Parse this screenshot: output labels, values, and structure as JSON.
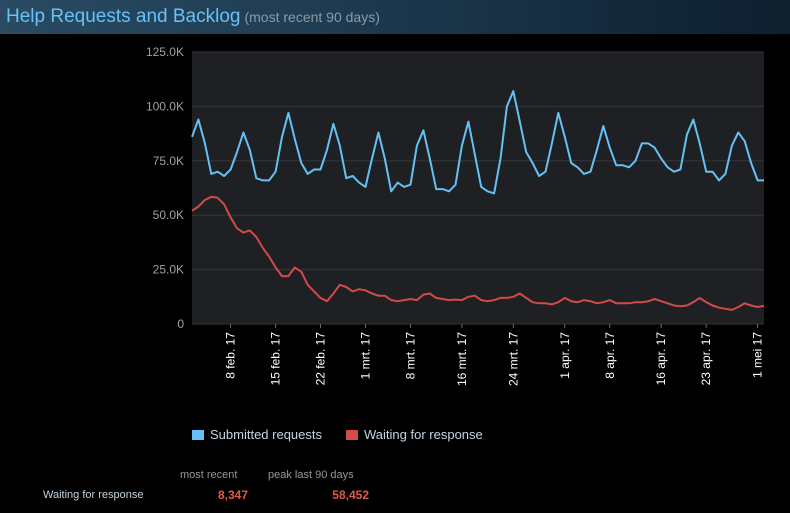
{
  "header": {
    "title": "Help Requests and Backlog",
    "subtitle": "(most recent 90 days)"
  },
  "colors": {
    "submitted": "#66c0f4",
    "waiting": "#d24a4a",
    "plot_bg": "#1e2023",
    "grid": "#33363a"
  },
  "chart_data": {
    "type": "line",
    "title": "Help Requests and Backlog",
    "subtitle": "(most recent 90 days)",
    "ylim": [
      0,
      125000
    ],
    "y_ticks": [
      0,
      25000,
      50000,
      75000,
      100000,
      125000
    ],
    "y_tick_labels": [
      "0",
      "25.0K",
      "50.0K",
      "75.0K",
      "100.0K",
      "125.0K"
    ],
    "x_start": "2017-02-02",
    "x_tick_labels": [
      "8 feb. 17",
      "15 feb. 17",
      "22 feb. 17",
      "1 mrt. 17",
      "8 mrt. 17",
      "16 mrt. 17",
      "24 mrt. 17",
      "1 apr. 17",
      "8 apr. 17",
      "16 apr. 17",
      "23 apr. 17",
      "1 mei 17"
    ],
    "x_tick_dates": [
      "2017-02-08",
      "2017-02-15",
      "2017-02-22",
      "2017-03-01",
      "2017-03-08",
      "2017-03-16",
      "2017-03-24",
      "2017-04-01",
      "2017-04-08",
      "2017-04-16",
      "2017-04-23",
      "2017-05-01"
    ],
    "legend": "bottom",
    "series": [
      {
        "name": "Submitted requests",
        "values": [
          86000,
          94000,
          83000,
          69000,
          70000,
          68000,
          71000,
          79000,
          88000,
          80000,
          67000,
          66000,
          66000,
          70000,
          86000,
          97000,
          85000,
          74000,
          69000,
          71000,
          71000,
          80000,
          92000,
          82000,
          67000,
          68000,
          65000,
          63000,
          76000,
          88000,
          76000,
          61000,
          65000,
          63000,
          64000,
          82000,
          89000,
          76000,
          62000,
          62000,
          61000,
          64000,
          82000,
          93000,
          78000,
          63000,
          61000,
          60000,
          76000,
          100000,
          107000,
          93000,
          79000,
          74000,
          68000,
          70000,
          83000,
          97000,
          86000,
          74000,
          72000,
          69000,
          70000,
          80000,
          91000,
          81000,
          73000,
          73000,
          72000,
          75000,
          83000,
          83000,
          81000,
          76000,
          72000,
          70000,
          71000,
          87000,
          94000,
          83000,
          70000,
          70000,
          66000,
          69000,
          82000,
          88000,
          84000,
          74000,
          66000,
          66000
        ]
      },
      {
        "name": "Waiting for response",
        "values": [
          52000,
          54000,
          57000,
          58452,
          58000,
          55000,
          49000,
          44000,
          42000,
          43000,
          40000,
          35000,
          31000,
          26000,
          22000,
          22000,
          26000,
          24000,
          18000,
          15000,
          12000,
          10500,
          14000,
          18000,
          17000,
          15000,
          16000,
          15500,
          14000,
          13000,
          13000,
          11000,
          10500,
          11000,
          11500,
          11000,
          13500,
          14000,
          12000,
          11500,
          11000,
          11200,
          11000,
          12500,
          13000,
          11000,
          10500,
          11000,
          12000,
          12000,
          12500,
          14000,
          12000,
          10000,
          9500,
          9500,
          9000,
          10000,
          12000,
          10500,
          10000,
          11000,
          10500,
          9500,
          10000,
          11000,
          9500,
          9500,
          9500,
          10000,
          10000,
          10500,
          11500,
          10500,
          9500,
          8500,
          8200,
          8500,
          10000,
          12000,
          10000,
          8500,
          7500,
          7000,
          6500,
          7800,
          9500,
          8500,
          7800,
          8347
        ]
      }
    ]
  },
  "legend": {
    "submitted_label": "Submitted requests",
    "waiting_label": "Waiting for response"
  },
  "stats": {
    "col_recent": "most recent",
    "col_peak": "peak last 90 days",
    "row_label": "Waiting for response",
    "most_recent": "8,347",
    "peak": "58,452"
  }
}
